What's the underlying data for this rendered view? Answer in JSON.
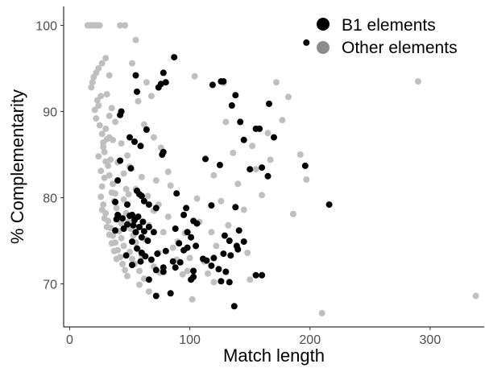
{
  "chart_data": {
    "type": "scatter",
    "title": "",
    "xlabel": "Match length",
    "ylabel": "% Complementarity",
    "xlim": [
      -5,
      345
    ],
    "ylim": [
      65,
      102.2
    ],
    "xticks": [
      0,
      100,
      200,
      300
    ],
    "yticks": [
      70,
      80,
      90,
      100
    ],
    "grid": false,
    "legend_position": "top-right",
    "series": [
      {
        "name": "Other elements",
        "color": "#bfbfbf",
        "points": [
          [
            15,
            100
          ],
          [
            17,
            100
          ],
          [
            19,
            100
          ],
          [
            21,
            100
          ],
          [
            23,
            100
          ],
          [
            25,
            100
          ],
          [
            42,
            100
          ],
          [
            46,
            100
          ],
          [
            55,
            98.3
          ],
          [
            18,
            92.8
          ],
          [
            19,
            93.4
          ],
          [
            20,
            94.0
          ],
          [
            22,
            94.5
          ],
          [
            24,
            95.0
          ],
          [
            27,
            95.6
          ],
          [
            30,
            96.2
          ],
          [
            33,
            94.2
          ],
          [
            21,
            90.2
          ],
          [
            22,
            89.2
          ],
          [
            23,
            91.3
          ],
          [
            24,
            90.7
          ],
          [
            25,
            88.4
          ],
          [
            26,
            91.8
          ],
          [
            27,
            87.4
          ],
          [
            28,
            86.4
          ],
          [
            29,
            85.3
          ],
          [
            30,
            84.2
          ],
          [
            31,
            86.8
          ],
          [
            32,
            83.7
          ],
          [
            33,
            82.6
          ],
          [
            34,
            84.4
          ],
          [
            36,
            81.6
          ],
          [
            38,
            80.5
          ],
          [
            29,
            82.3
          ],
          [
            27,
            81.3
          ],
          [
            26,
            80.1
          ],
          [
            28,
            79.2
          ],
          [
            30,
            78.2
          ],
          [
            32,
            77.3
          ],
          [
            34,
            76.5
          ],
          [
            36,
            75.6
          ],
          [
            38,
            74.8
          ],
          [
            40,
            73.9
          ],
          [
            42,
            73.1
          ],
          [
            44,
            72.3
          ],
          [
            46,
            71.6
          ],
          [
            48,
            70.9
          ],
          [
            50,
            73.7
          ],
          [
            52,
            72.9
          ],
          [
            27,
            78.6
          ],
          [
            29,
            77.6
          ],
          [
            31,
            76.6
          ],
          [
            33,
            75.7
          ],
          [
            35,
            74.7
          ],
          [
            37,
            73.8
          ],
          [
            39,
            72.9
          ],
          [
            41,
            76.1
          ],
          [
            43,
            75.3
          ],
          [
            45,
            74.4
          ],
          [
            47,
            78.2
          ],
          [
            49,
            77.2
          ],
          [
            51,
            76.4
          ],
          [
            53,
            75.6
          ],
          [
            55,
            74.8
          ],
          [
            57,
            74.0
          ],
          [
            35,
            80.6
          ],
          [
            37,
            79.6
          ],
          [
            39,
            78.8
          ],
          [
            41,
            77.9
          ],
          [
            43,
            77.0
          ],
          [
            45,
            79.8
          ],
          [
            47,
            81.0
          ],
          [
            49,
            80.4
          ],
          [
            30,
            88.0
          ],
          [
            33,
            89.5
          ],
          [
            31,
            92.0
          ],
          [
            36,
            86.7
          ],
          [
            40,
            84.1
          ],
          [
            45,
            82.8
          ],
          [
            50,
            83.6
          ],
          [
            55,
            81.0
          ],
          [
            54,
            72.3
          ],
          [
            58,
            71.5
          ],
          [
            62,
            70.6
          ],
          [
            58,
            69.9
          ],
          [
            60,
            73.3
          ],
          [
            63,
            75.2
          ],
          [
            66,
            76.8
          ],
          [
            70,
            78.5
          ],
          [
            66,
            69.1
          ],
          [
            70,
            72.0
          ],
          [
            74,
            73.6
          ],
          [
            78,
            76.0
          ],
          [
            82,
            77.8
          ],
          [
            65,
            80.2
          ],
          [
            60,
            82.4
          ],
          [
            62,
            88.5
          ],
          [
            52,
            95.6
          ],
          [
            64,
            93.4
          ],
          [
            70,
            87.0
          ],
          [
            76,
            85.8
          ],
          [
            82,
            83.0
          ],
          [
            84,
            81.4
          ],
          [
            86,
            74.2
          ],
          [
            89,
            72.8
          ],
          [
            98,
            71.5
          ],
          [
            100,
            73.0
          ],
          [
            102,
            68.2
          ],
          [
            104,
            94.1
          ],
          [
            108,
            77.2
          ],
          [
            112,
            72.6
          ],
          [
            115,
            71.2
          ],
          [
            118,
            76.0
          ],
          [
            122,
            74.4
          ],
          [
            126,
            79.6
          ],
          [
            128,
            93.3
          ],
          [
            130,
            88.8
          ],
          [
            132,
            76.8
          ],
          [
            140,
            81.6
          ],
          [
            142,
            88.8
          ],
          [
            145,
            78.6
          ],
          [
            148,
            73.6
          ],
          [
            150,
            70.5
          ],
          [
            155,
            83.3
          ],
          [
            160,
            80.3
          ],
          [
            165,
            87.5
          ],
          [
            167,
            84.4
          ],
          [
            172,
            93.4
          ],
          [
            177,
            89.0
          ],
          [
            182,
            91.7
          ],
          [
            186,
            78.1
          ],
          [
            192,
            85.0
          ],
          [
            197,
            82.1
          ],
          [
            210,
            66.6
          ],
          [
            290,
            93.5
          ],
          [
            338,
            68.6
          ],
          [
            24,
            84.8
          ],
          [
            26,
            83.1
          ],
          [
            28,
            85.9
          ],
          [
            33,
            87.0
          ],
          [
            35,
            90.4
          ],
          [
            38,
            88.8
          ],
          [
            43,
            86.3
          ],
          [
            48,
            84.9
          ],
          [
            57,
            91.2
          ],
          [
            68,
            91.8
          ],
          [
            72,
            82.0
          ],
          [
            74,
            79.2
          ],
          [
            90,
            74.9
          ],
          [
            94,
            71.1
          ],
          [
            96,
            75.9
          ],
          [
            106,
            79.9
          ],
          [
            120,
            82.6
          ],
          [
            136,
            85.2
          ],
          [
            152,
            86.0
          ],
          [
            120,
            70.2
          ],
          [
            75,
            71.3
          ]
        ]
      },
      {
        "name": "B1 elements",
        "color": "#000000",
        "points": [
          [
            197,
            98.0
          ],
          [
            87,
            96.3
          ],
          [
            78,
            94.5
          ],
          [
            55,
            94.2
          ],
          [
            80,
            93.4
          ],
          [
            76,
            93.2
          ],
          [
            74,
            92.8
          ],
          [
            56,
            92.3
          ],
          [
            119,
            93.1
          ],
          [
            126,
            93.5
          ],
          [
            128,
            93.5
          ],
          [
            138,
            91.9
          ],
          [
            135,
            90.7
          ],
          [
            166,
            90.9
          ],
          [
            43,
            90.0
          ],
          [
            42,
            89.6
          ],
          [
            64,
            87.9
          ],
          [
            142,
            88.8
          ],
          [
            145,
            86.7
          ],
          [
            155,
            88.0
          ],
          [
            158,
            88.0
          ],
          [
            170,
            87.0
          ],
          [
            50,
            87.0
          ],
          [
            54,
            86.5
          ],
          [
            59,
            86.0
          ],
          [
            78,
            85.3
          ],
          [
            77,
            85.0
          ],
          [
            42,
            84.3
          ],
          [
            113,
            84.5
          ],
          [
            125,
            83.8
          ],
          [
            150,
            83.3
          ],
          [
            160,
            83.5
          ],
          [
            165,
            82.5
          ],
          [
            196,
            83.7
          ],
          [
            51,
            83.4
          ],
          [
            40,
            82.0
          ],
          [
            56,
            80.8
          ],
          [
            58,
            80.4
          ],
          [
            60,
            80.2
          ],
          [
            89,
            80.5
          ],
          [
            38,
            79.5
          ],
          [
            48,
            79.2
          ],
          [
            62,
            79.6
          ],
          [
            66,
            79.2
          ],
          [
            72,
            78.8
          ],
          [
            97,
            78.8
          ],
          [
            118,
            79.1
          ],
          [
            138,
            78.9
          ],
          [
            216,
            79.2
          ],
          [
            40,
            78.0
          ],
          [
            44,
            77.6
          ],
          [
            50,
            77.9
          ],
          [
            52,
            78.0
          ],
          [
            54,
            77.4
          ],
          [
            57,
            77.8
          ],
          [
            61,
            77.2
          ],
          [
            95,
            78.0
          ],
          [
            103,
            77.3
          ],
          [
            106,
            77.0
          ],
          [
            39,
            77.5
          ],
          [
            45,
            76.4
          ],
          [
            48,
            76.9
          ],
          [
            53,
            76.8
          ],
          [
            55,
            76.0
          ],
          [
            58,
            76.6
          ],
          [
            62,
            76.1
          ],
          [
            66,
            76.6
          ],
          [
            38,
            76.2
          ],
          [
            70,
            76.0
          ],
          [
            88,
            76.4
          ],
          [
            98,
            76.0
          ],
          [
            141,
            76.2
          ],
          [
            60,
            75.4
          ],
          [
            65,
            75.0
          ],
          [
            52,
            74.9
          ],
          [
            101,
            75.4
          ],
          [
            129,
            75.6
          ],
          [
            133,
            75.0
          ],
          [
            91,
            74.7
          ],
          [
            98,
            74.2
          ],
          [
            139,
            74.4
          ],
          [
            145,
            74.9
          ],
          [
            56,
            74.1
          ],
          [
            60,
            73.6
          ],
          [
            63,
            73.2
          ],
          [
            68,
            72.8
          ],
          [
            73,
            73.5
          ],
          [
            80,
            73.8
          ],
          [
            86,
            72.6
          ],
          [
            92,
            72.5
          ],
          [
            95,
            73.9
          ],
          [
            105,
            74.4
          ],
          [
            111,
            72.9
          ],
          [
            114,
            72.7
          ],
          [
            120,
            73.0
          ],
          [
            128,
            73.5
          ],
          [
            134,
            73.3
          ],
          [
            140,
            74.0
          ],
          [
            47,
            73.3
          ],
          [
            52,
            72.2
          ],
          [
            59,
            72.6
          ],
          [
            78,
            71.9
          ],
          [
            88,
            71.9
          ],
          [
            101,
            70.5
          ],
          [
            103,
            71.5
          ],
          [
            124,
            71.7
          ],
          [
            130,
            71.4
          ],
          [
            155,
            71.0
          ],
          [
            160,
            71.0
          ],
          [
            126,
            70.3
          ],
          [
            133,
            70.2
          ],
          [
            66,
            70.5
          ],
          [
            72,
            68.6
          ],
          [
            84,
            68.9
          ],
          [
            137,
            67.4
          ],
          [
            72,
            71.6
          ],
          [
            78,
            71.4
          ],
          [
            103,
            70.8
          ],
          [
            118,
            72.1
          ]
        ]
      }
    ]
  }
}
